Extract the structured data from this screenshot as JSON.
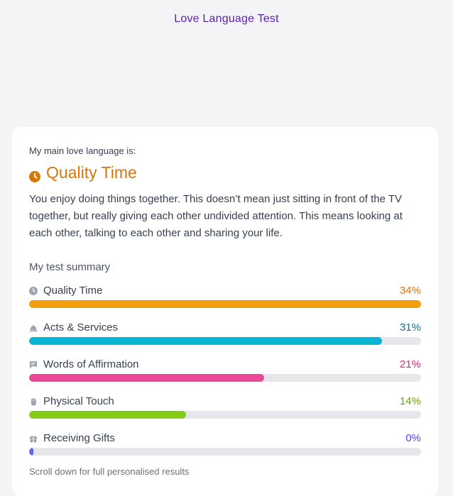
{
  "header": {
    "title": "Love Language Test"
  },
  "result": {
    "label": "My main love language is:",
    "name": "Quality Time",
    "icon": "clock-icon",
    "color": "#d97706",
    "description": "You enjoy doing things together. This doesn’t mean just sitting in front of the TV together, but really giving each other undivided attention. This means looking at each other, talking to each other and sharing your life."
  },
  "summary": {
    "title": "My test summary",
    "items": [
      {
        "label": "Quality Time",
        "percent_text": "34%",
        "percent": 34,
        "fill_fraction": 1.0,
        "color": "#f59e0b",
        "text_color": "#d97706",
        "icon": "clock-icon"
      },
      {
        "label": "Acts & Services",
        "percent_text": "31%",
        "percent": 31,
        "fill_fraction": 0.9,
        "color": "#06b6d4",
        "text_color": "#0e7490",
        "icon": "bell-icon"
      },
      {
        "label": "Words of Affirmation",
        "percent_text": "21%",
        "percent": 21,
        "fill_fraction": 0.6,
        "color": "#ec4899",
        "text_color": "#db2777",
        "icon": "chat-icon"
      },
      {
        "label": "Physical Touch",
        "percent_text": "14%",
        "percent": 14,
        "fill_fraction": 0.4,
        "color": "#84cc16",
        "text_color": "#65a30d",
        "icon": "hand-icon"
      },
      {
        "label": "Receiving Gifts",
        "percent_text": "0%",
        "percent": 0,
        "fill_fraction": 0.01,
        "color": "#6366f1",
        "text_color": "#4f46e5",
        "icon": "gift-icon"
      }
    ]
  },
  "footer": {
    "note": "Scroll down for full personalised results"
  }
}
